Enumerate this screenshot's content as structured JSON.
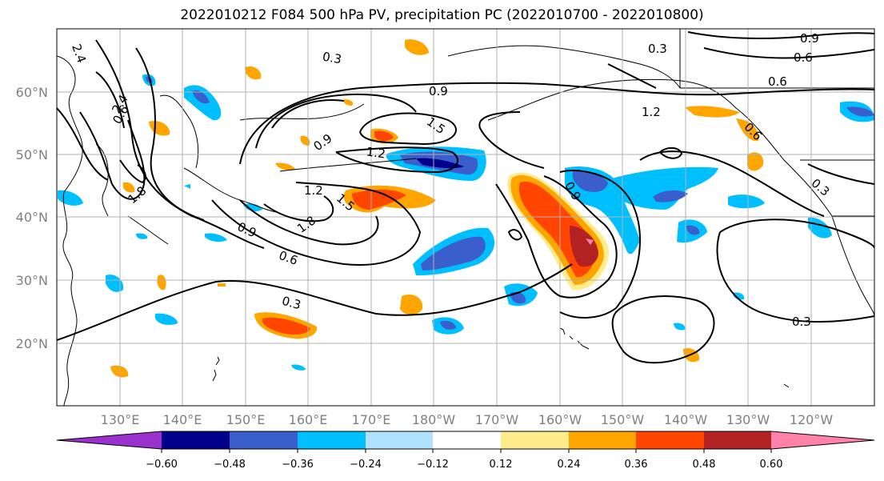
{
  "title": "2022010212 F084 500 hPa PV, precipitation PC (2022010700 - 2022010800)",
  "map": {
    "lat_labels": [
      "60°N",
      "50°N",
      "40°N",
      "30°N",
      "20°N"
    ],
    "lon_labels": [
      "130°E",
      "140°E",
      "150°E",
      "160°E",
      "170°E",
      "180°W",
      "170°W",
      "160°W",
      "150°W",
      "140°W",
      "130°W",
      "120°W"
    ],
    "contour_labels": [
      "0.3",
      "0.9",
      "0.6",
      "1.2",
      "1.5",
      "1.8",
      "2.4",
      "0.6",
      "0.9",
      "1.2",
      "1.5",
      "1.8",
      "0.9",
      "0.6",
      "0.3",
      "0.3",
      "0.3",
      "0.9",
      "0.6",
      "1.2",
      "0.3",
      "0.6",
      "0.9",
      "2.4"
    ]
  },
  "colorbar": {
    "ticks": [
      "−0.60",
      "−0.48",
      "−0.36",
      "−0.24",
      "−0.12",
      "0.12",
      "0.24",
      "0.36",
      "0.48",
      "0.60"
    ],
    "colors": [
      "#9932cc",
      "#00008b",
      "#3a5fcd",
      "#00bfff",
      "#b0e2ff",
      "#ffffff",
      "#ffec8b",
      "#ffa500",
      "#ff4500",
      "#b22222",
      "#ff82ab"
    ]
  }
}
